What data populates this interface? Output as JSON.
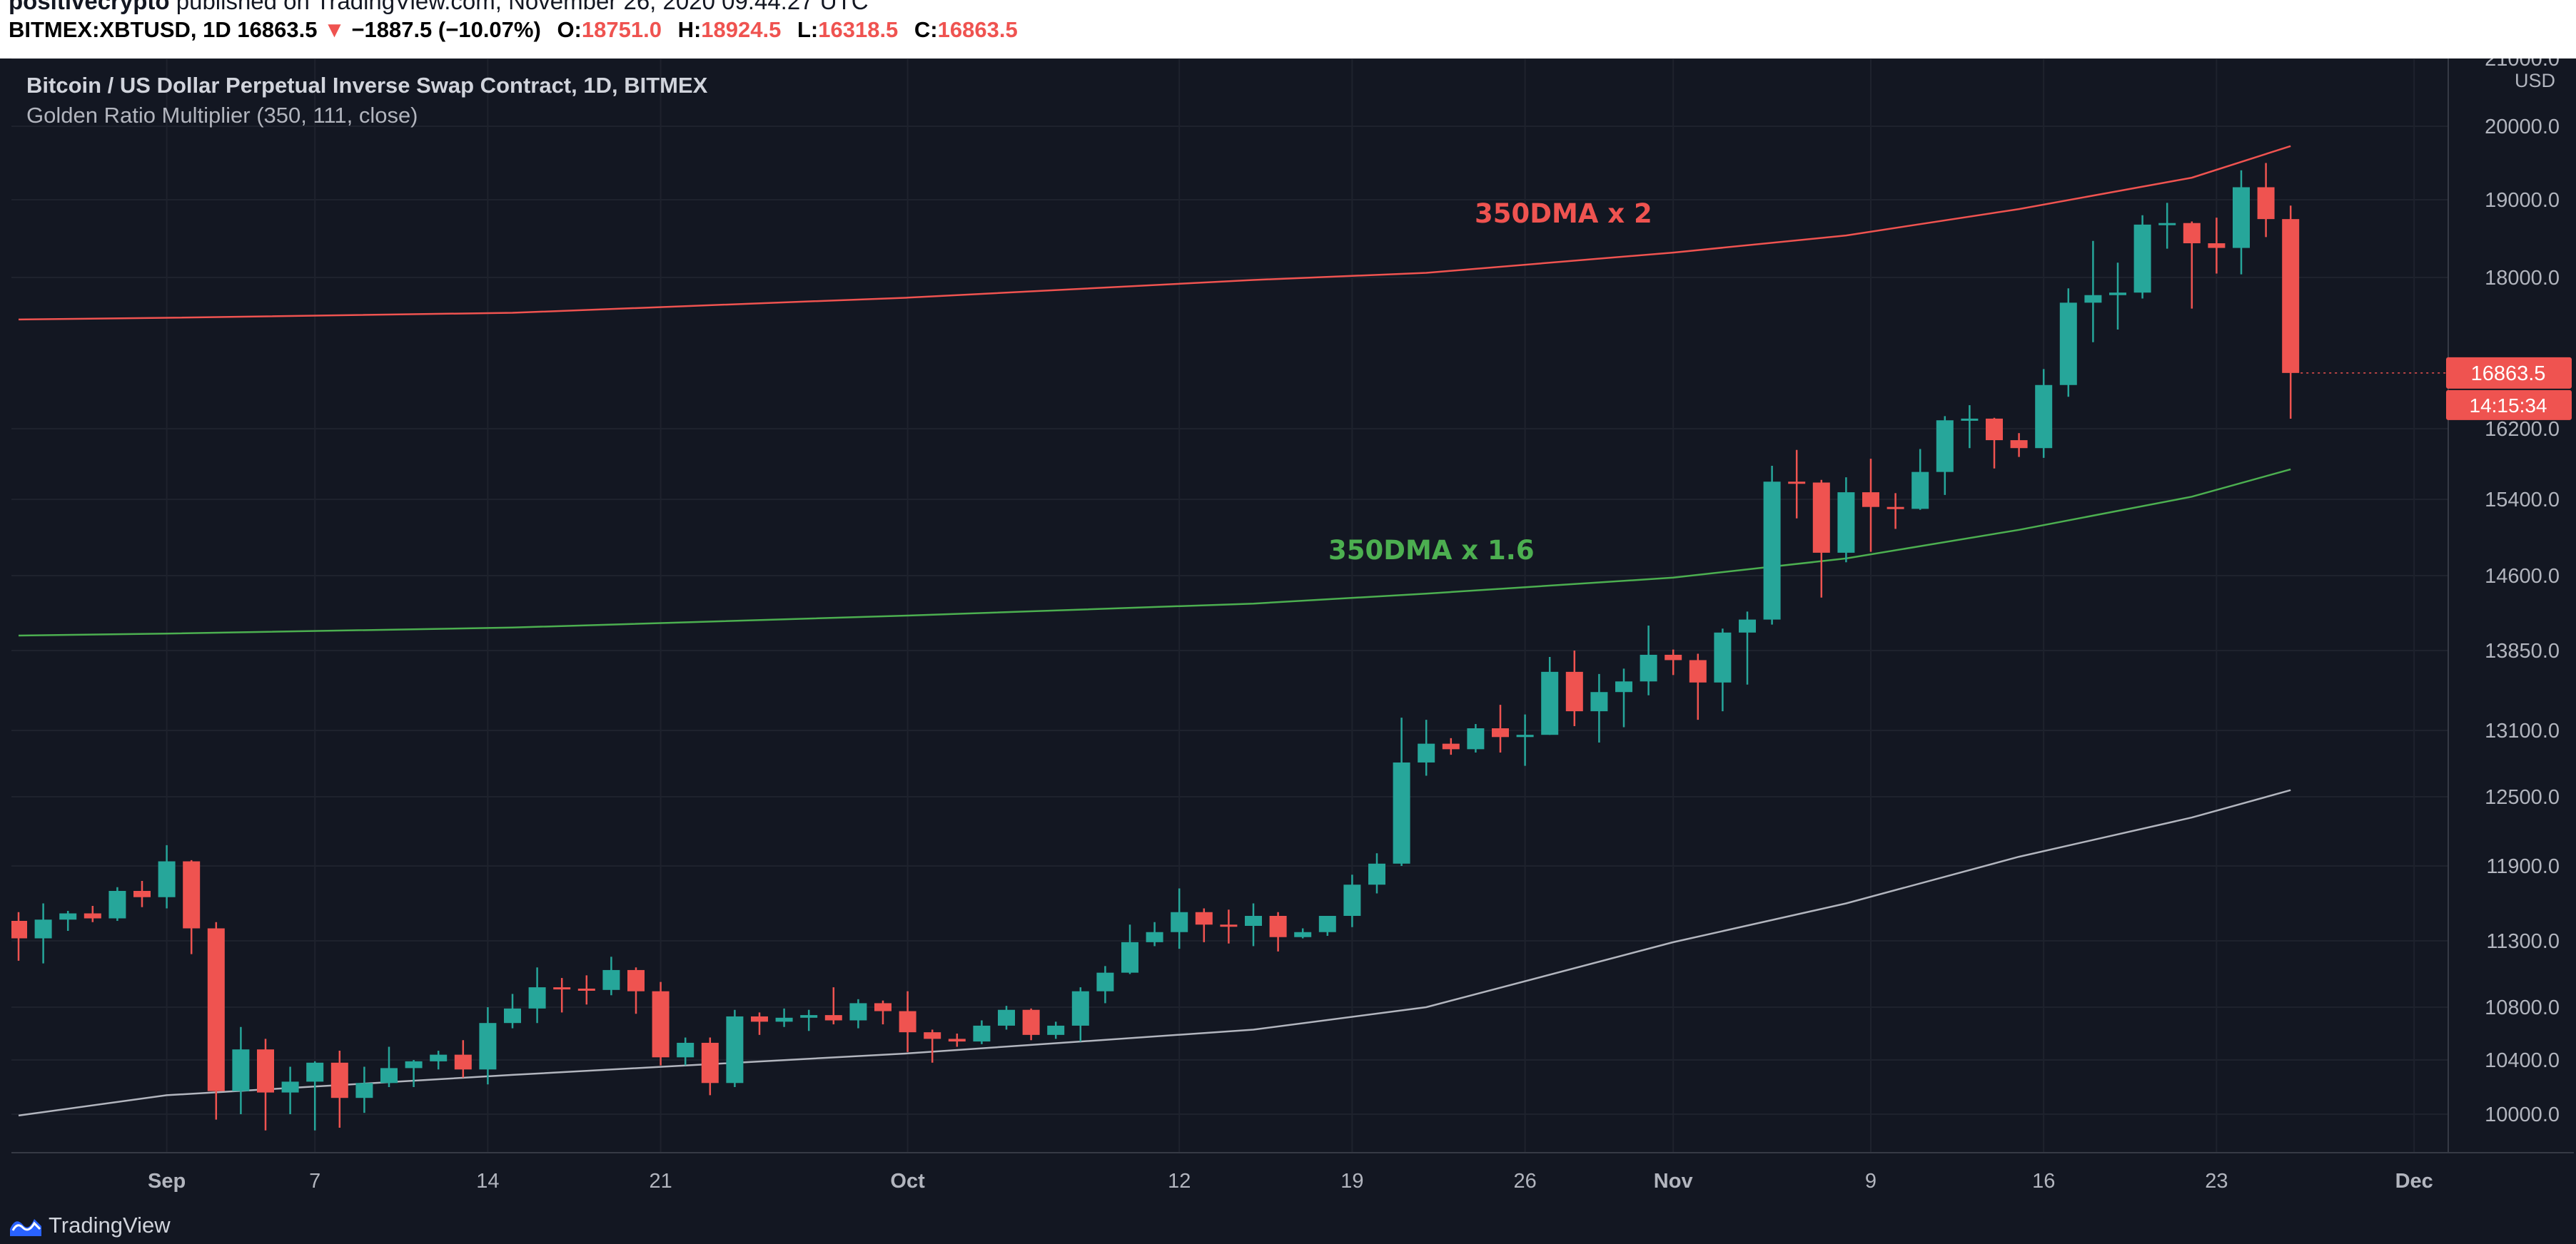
{
  "header": {
    "author": "positivecrypto",
    "published_text": "published on TradingView.com, November 26, 2020 09:44:27 UTC",
    "symbol": "BITMEX:XBTUSD, 1D",
    "last": "16863.5",
    "change": "−1887.5 (−10.07%)",
    "o_label": "O:",
    "o_value": "18751.0",
    "h_label": "H:",
    "h_value": "18924.5",
    "l_label": "L:",
    "l_value": "16318.5",
    "c_label": "C:",
    "c_value": "16863.5"
  },
  "legend": {
    "title": "Bitcoin / US Dollar Perpetual Inverse Swap Contract, 1D, BITMEX",
    "indicator": "Golden Ratio Multiplier (350, 111, close)"
  },
  "footer": {
    "brand": "TradingView"
  },
  "chart_data": {
    "type": "candlestick",
    "currency": "USD",
    "y_ticks": [
      10000,
      10400,
      10800,
      11300,
      11900,
      12500,
      13100,
      13850,
      14600,
      15400,
      16200,
      18000,
      19000,
      20000,
      21000
    ],
    "x_ticks": [
      {
        "label": "Sep",
        "date": "2020-09-01"
      },
      {
        "label": "7",
        "date": "2020-09-07"
      },
      {
        "label": "14",
        "date": "2020-09-14"
      },
      {
        "label": "21",
        "date": "2020-09-21"
      },
      {
        "label": "Oct",
        "date": "2020-10-01"
      },
      {
        "label": "12",
        "date": "2020-10-12"
      },
      {
        "label": "19",
        "date": "2020-10-19"
      },
      {
        "label": "26",
        "date": "2020-10-26"
      },
      {
        "label": "Nov",
        "date": "2020-11-01"
      },
      {
        "label": "9",
        "date": "2020-11-09"
      },
      {
        "label": "16",
        "date": "2020-11-16"
      },
      {
        "label": "23",
        "date": "2020-11-23"
      },
      {
        "label": "Dec",
        "date": "2020-12-01"
      }
    ],
    "price_badges": {
      "last_price": "16863.5",
      "countdown": "14:15:34"
    },
    "candles": [
      [
        "2020-08-26",
        11460,
        11530,
        11150,
        11320
      ],
      [
        "2020-08-27",
        11320,
        11600,
        11130,
        11470
      ],
      [
        "2020-08-28",
        11470,
        11540,
        11380,
        11520
      ],
      [
        "2020-08-29",
        11520,
        11580,
        11450,
        11480
      ],
      [
        "2020-08-30",
        11480,
        11730,
        11460,
        11700
      ],
      [
        "2020-08-31",
        11700,
        11780,
        11570,
        11650
      ],
      [
        "2020-09-01",
        11650,
        12080,
        11560,
        11940
      ],
      [
        "2020-09-02",
        11940,
        11950,
        11200,
        11400
      ],
      [
        "2020-09-03",
        11400,
        11450,
        9960,
        10170
      ],
      [
        "2020-09-04",
        10170,
        10650,
        10000,
        10480
      ],
      [
        "2020-09-05",
        10480,
        10560,
        9880,
        10160
      ],
      [
        "2020-09-06",
        10160,
        10350,
        10000,
        10240
      ],
      [
        "2020-09-07",
        10240,
        10390,
        9880,
        10380
      ],
      [
        "2020-09-08",
        10380,
        10470,
        9900,
        10120
      ],
      [
        "2020-09-09",
        10120,
        10350,
        10010,
        10230
      ],
      [
        "2020-09-10",
        10230,
        10500,
        10200,
        10340
      ],
      [
        "2020-09-11",
        10340,
        10400,
        10200,
        10390
      ],
      [
        "2020-09-12",
        10390,
        10470,
        10330,
        10440
      ],
      [
        "2020-09-13",
        10440,
        10550,
        10270,
        10330
      ],
      [
        "2020-09-14",
        10330,
        10800,
        10220,
        10680
      ],
      [
        "2020-09-15",
        10680,
        10900,
        10640,
        10790
      ],
      [
        "2020-09-16",
        10790,
        11100,
        10680,
        10950
      ],
      [
        "2020-09-17",
        10950,
        11020,
        10760,
        10940
      ],
      [
        "2020-09-18",
        10940,
        11040,
        10820,
        10930
      ],
      [
        "2020-09-19",
        10930,
        11180,
        10890,
        11080
      ],
      [
        "2020-09-20",
        11080,
        11100,
        10750,
        10920
      ],
      [
        "2020-09-21",
        10920,
        10990,
        10360,
        10420
      ],
      [
        "2020-09-22",
        10420,
        10570,
        10360,
        10530
      ],
      [
        "2020-09-23",
        10530,
        10570,
        10140,
        10230
      ],
      [
        "2020-09-24",
        10230,
        10780,
        10200,
        10730
      ],
      [
        "2020-09-25",
        10730,
        10760,
        10590,
        10690
      ],
      [
        "2020-09-26",
        10690,
        10790,
        10650,
        10720
      ],
      [
        "2020-09-27",
        10720,
        10780,
        10620,
        10740
      ],
      [
        "2020-09-28",
        10740,
        10950,
        10670,
        10700
      ],
      [
        "2020-09-29",
        10700,
        10860,
        10640,
        10830
      ],
      [
        "2020-09-30",
        10830,
        10850,
        10670,
        10770
      ],
      [
        "2020-10-01",
        10770,
        10920,
        10460,
        10610
      ],
      [
        "2020-10-02",
        10610,
        10630,
        10380,
        10560
      ],
      [
        "2020-10-03",
        10560,
        10600,
        10500,
        10540
      ],
      [
        "2020-10-04",
        10540,
        10700,
        10520,
        10660
      ],
      [
        "2020-10-05",
        10660,
        10810,
        10630,
        10780
      ],
      [
        "2020-10-06",
        10780,
        10790,
        10550,
        10590
      ],
      [
        "2020-10-07",
        10590,
        10690,
        10560,
        10660
      ],
      [
        "2020-10-08",
        10660,
        10950,
        10540,
        10920
      ],
      [
        "2020-10-09",
        10920,
        11110,
        10830,
        11060
      ],
      [
        "2020-10-10",
        11060,
        11430,
        11050,
        11290
      ],
      [
        "2020-10-11",
        11290,
        11450,
        11260,
        11370
      ],
      [
        "2020-10-12",
        11370,
        11720,
        11240,
        11530
      ],
      [
        "2020-10-13",
        11530,
        11560,
        11290,
        11430
      ],
      [
        "2020-10-14",
        11430,
        11550,
        11280,
        11420
      ],
      [
        "2020-10-15",
        11420,
        11600,
        11260,
        11500
      ],
      [
        "2020-10-16",
        11500,
        11530,
        11220,
        11330
      ],
      [
        "2020-10-17",
        11330,
        11400,
        11320,
        11370
      ],
      [
        "2020-10-18",
        11370,
        11500,
        11340,
        11500
      ],
      [
        "2020-10-19",
        11500,
        11830,
        11410,
        11750
      ],
      [
        "2020-10-20",
        11750,
        12010,
        11680,
        11920
      ],
      [
        "2020-10-21",
        11920,
        13220,
        11900,
        12810
      ],
      [
        "2020-10-22",
        12810,
        13200,
        12690,
        12980
      ],
      [
        "2020-10-23",
        12980,
        13030,
        12880,
        12930
      ],
      [
        "2020-10-24",
        12930,
        13160,
        12900,
        13120
      ],
      [
        "2020-10-25",
        13120,
        13340,
        12900,
        13040
      ],
      [
        "2020-10-26",
        13040,
        13250,
        12780,
        13060
      ],
      [
        "2020-10-27",
        13060,
        13790,
        13060,
        13650
      ],
      [
        "2020-10-28",
        13650,
        13850,
        13140,
        13280
      ],
      [
        "2020-10-29",
        13280,
        13630,
        12990,
        13460
      ],
      [
        "2020-10-30",
        13460,
        13680,
        13130,
        13560
      ],
      [
        "2020-10-31",
        13560,
        14100,
        13430,
        13810
      ],
      [
        "2020-11-01",
        13810,
        13860,
        13620,
        13760
      ],
      [
        "2020-11-02",
        13760,
        13820,
        13200,
        13550
      ],
      [
        "2020-11-03",
        13550,
        14070,
        13280,
        14030
      ],
      [
        "2020-11-04",
        14030,
        14240,
        13530,
        14160
      ],
      [
        "2020-11-05",
        14160,
        15780,
        14110,
        15600
      ],
      [
        "2020-11-06",
        15600,
        15960,
        15200,
        15590
      ],
      [
        "2020-11-07",
        15590,
        15620,
        14380,
        14840
      ],
      [
        "2020-11-08",
        14840,
        15650,
        14740,
        15480
      ],
      [
        "2020-11-09",
        15480,
        15860,
        14850,
        15320
      ],
      [
        "2020-11-10",
        15320,
        15470,
        15090,
        15300
      ],
      [
        "2020-11-11",
        15300,
        15970,
        15290,
        15710
      ],
      [
        "2020-11-12",
        15710,
        16350,
        15450,
        16300
      ],
      [
        "2020-11-13",
        16300,
        16480,
        15980,
        16320
      ],
      [
        "2020-11-14",
        16320,
        16330,
        15750,
        16070
      ],
      [
        "2020-11-15",
        16070,
        16150,
        15880,
        15980
      ],
      [
        "2020-11-16",
        15980,
        16910,
        15870,
        16720
      ],
      [
        "2020-11-17",
        16720,
        17870,
        16580,
        17700
      ],
      [
        "2020-11-18",
        17700,
        18470,
        17230,
        17790
      ],
      [
        "2020-11-19",
        17790,
        18190,
        17380,
        17820
      ],
      [
        "2020-11-20",
        17820,
        18800,
        17750,
        18680
      ],
      [
        "2020-11-21",
        18680,
        18960,
        18370,
        18700
      ],
      [
        "2020-11-22",
        18700,
        18720,
        17630,
        18440
      ],
      [
        "2020-11-23",
        18440,
        18770,
        18050,
        18380
      ],
      [
        "2020-11-24",
        18380,
        19400,
        18040,
        19170
      ],
      [
        "2020-11-25",
        19170,
        19500,
        18520,
        18751
      ],
      [
        "2020-11-26",
        18751,
        18924.5,
        16318.5,
        16863.5
      ]
    ],
    "lines": [
      {
        "label": "350DMA x 2",
        "color": "#ef5350",
        "points": [
          [
            "2020-08-26",
            17500
          ],
          [
            "2020-09-01",
            17520
          ],
          [
            "2020-09-15",
            17580
          ],
          [
            "2020-10-01",
            17760
          ],
          [
            "2020-10-15",
            17970
          ],
          [
            "2020-10-22",
            18060
          ],
          [
            "2020-11-01",
            18320
          ],
          [
            "2020-11-08",
            18540
          ],
          [
            "2020-11-15",
            18880
          ],
          [
            "2020-11-22",
            19300
          ],
          [
            "2020-11-26",
            19730
          ]
        ]
      },
      {
        "label": "350DMA x 1.6",
        "color": "#4caf50",
        "points": [
          [
            "2020-08-26",
            14000
          ],
          [
            "2020-09-01",
            14020
          ],
          [
            "2020-09-15",
            14080
          ],
          [
            "2020-10-01",
            14200
          ],
          [
            "2020-10-15",
            14320
          ],
          [
            "2020-10-22",
            14420
          ],
          [
            "2020-11-01",
            14580
          ],
          [
            "2020-11-08",
            14780
          ],
          [
            "2020-11-15",
            15080
          ],
          [
            "2020-11-22",
            15430
          ],
          [
            "2020-11-26",
            15740
          ]
        ]
      },
      {
        "label": "",
        "color": "#b2b5be",
        "points": [
          [
            "2020-08-26",
            9990
          ],
          [
            "2020-09-01",
            10140
          ],
          [
            "2020-09-15",
            10290
          ],
          [
            "2020-10-01",
            10450
          ],
          [
            "2020-10-15",
            10630
          ],
          [
            "2020-10-22",
            10800
          ],
          [
            "2020-11-01",
            11290
          ],
          [
            "2020-11-08",
            11600
          ],
          [
            "2020-11-15",
            11980
          ],
          [
            "2020-11-22",
            12320
          ],
          [
            "2020-11-26",
            12560
          ]
        ]
      }
    ],
    "annotations": [
      {
        "text": "350DMA x 2",
        "color": "#ef5350"
      },
      {
        "text": "350DMA x 1.6",
        "color": "#4caf50"
      }
    ],
    "colors": {
      "up": "#26a69a",
      "down": "#ef5350",
      "background": "#131722",
      "grid": "#1e222d",
      "text": "#b2b5be"
    }
  }
}
